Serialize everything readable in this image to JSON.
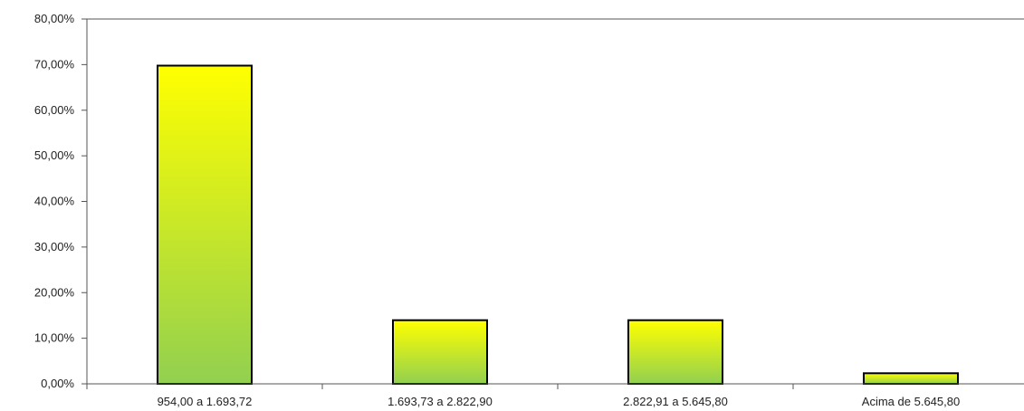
{
  "chart_data": {
    "type": "bar",
    "title": "",
    "xlabel": "",
    "ylabel": "",
    "categories": [
      "954,00 a 1.693,72",
      "1.693,73 a 2.822,90",
      "2.822,91 a 5.645,80",
      "Acima de 5.645,80"
    ],
    "values": [
      69.77,
      13.95,
      13.95,
      2.33
    ],
    "ylim": [
      0,
      80
    ],
    "yticks": [
      0,
      10,
      20,
      30,
      40,
      50,
      60,
      70,
      80
    ],
    "ytick_labels": [
      "0,00%",
      "10,00%",
      "20,00%",
      "30,00%",
      "40,00%",
      "50,00%",
      "60,00%",
      "70,00%",
      "80,00%"
    ],
    "grid": false,
    "legend": "none",
    "colors": {
      "bar_top": "#ffff00",
      "bar_bottom": "#92d050",
      "bar_border": "#000000",
      "axis": "#555555"
    }
  }
}
